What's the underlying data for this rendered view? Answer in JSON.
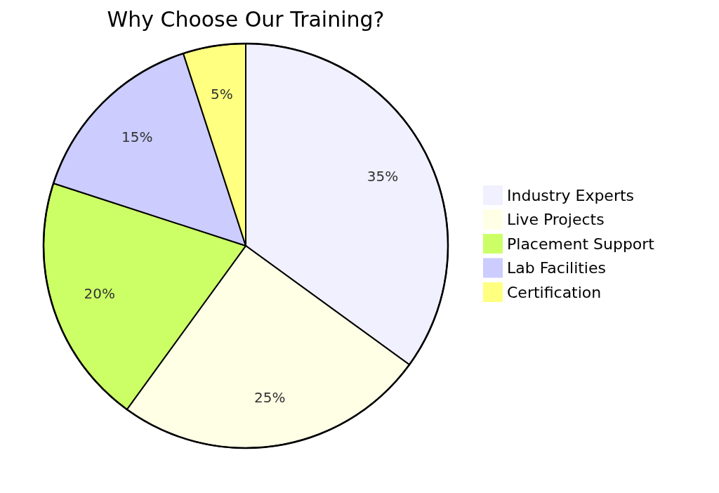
{
  "chart_data": {
    "type": "pie",
    "title": "Why Choose Our Training?",
    "categories": [
      "Industry Experts",
      "Live Projects",
      "Placement Support",
      "Lab Facilities",
      "Certification"
    ],
    "values": [
      35,
      25,
      20,
      15,
      5
    ],
    "value_labels": [
      "35%",
      "25%",
      "20%",
      "15%",
      "5%"
    ],
    "colors": [
      "#f0f0ff",
      "#ffffe6",
      "#ccff66",
      "#ccccff",
      "#ffff80"
    ],
    "legend": "right"
  }
}
